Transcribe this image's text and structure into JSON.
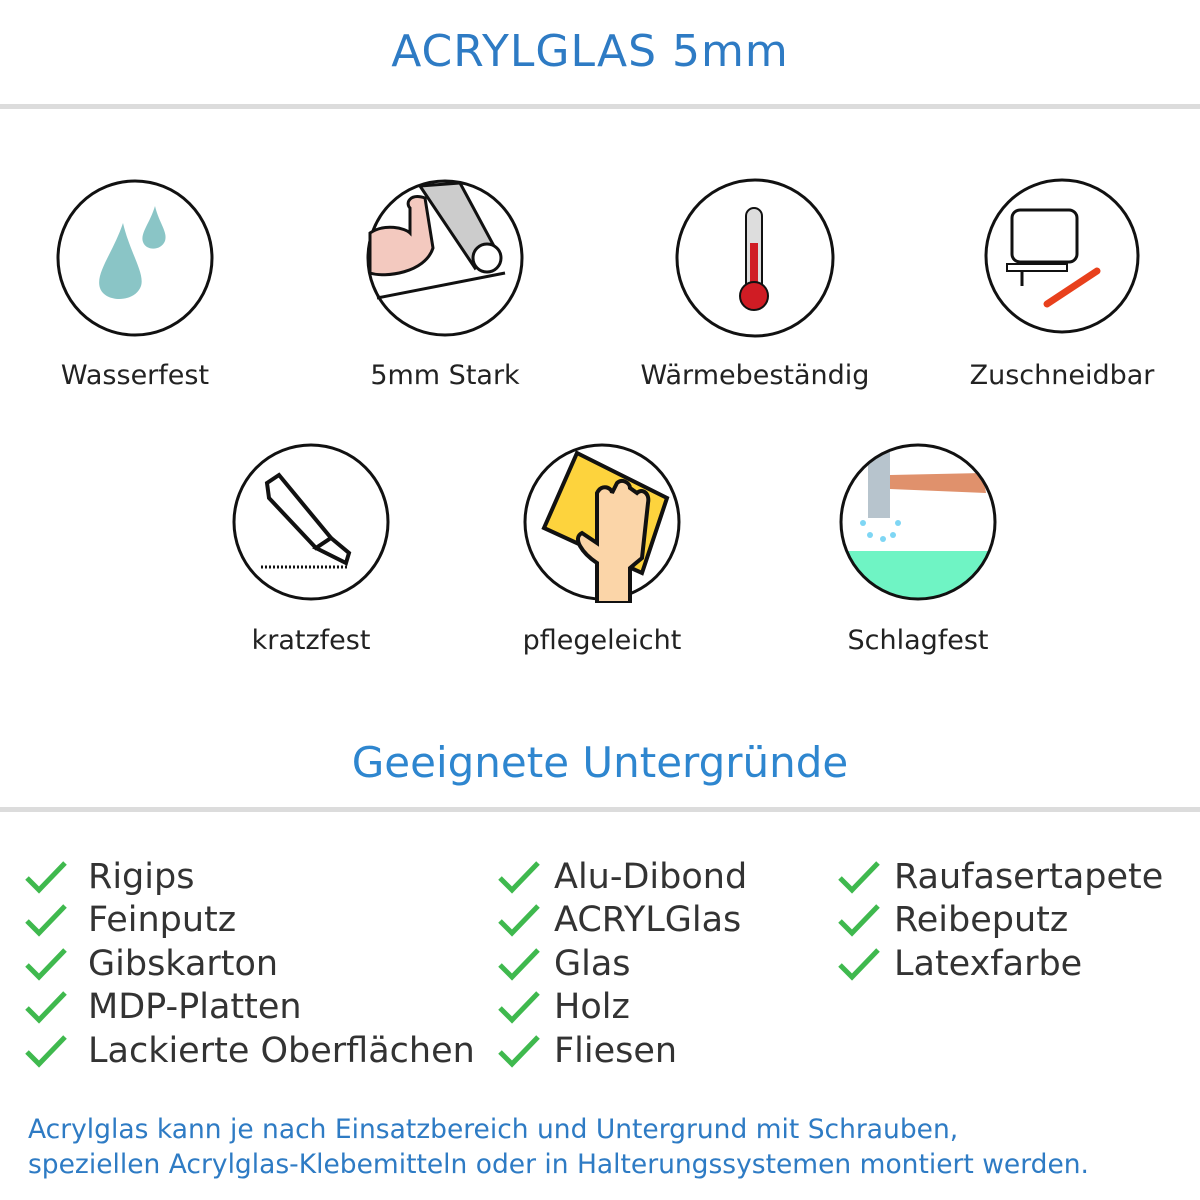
{
  "header": {
    "title": "ACRYLGLAS 5mm"
  },
  "features": [
    {
      "label": "Wasserfest",
      "icon": "water-drops-icon"
    },
    {
      "label": "5mm Stark",
      "icon": "strong-arm-icon"
    },
    {
      "label": "Wärmebeständig",
      "icon": "thermometer-icon"
    },
    {
      "label": "Zuschneidbar",
      "icon": "jigsaw-cutter-icon"
    },
    {
      "label": "kratzfest",
      "icon": "box-cutter-icon"
    },
    {
      "label": "pflegeleicht",
      "icon": "cleaning-hand-icon"
    },
    {
      "label": "Schlagfest",
      "icon": "hammer-impact-icon"
    }
  ],
  "surfaces": {
    "title": "Geeignete Untergründe",
    "columns": [
      [
        "Rigips",
        "Feinputz",
        "Gibskarton",
        "MDP-Platten",
        "Lackierte Oberflächen"
      ],
      [
        "Alu-Dibond",
        "ACRYLGlas",
        "Glas",
        "Holz",
        "Fliesen"
      ],
      [
        "Raufasertapete",
        "Reibeputz",
        "Latexfarbe"
      ]
    ]
  },
  "footer": {
    "lines": [
      "Acrylglas kann je nach Einsatzbereich und Untergrund mit Schrauben,",
      "speziellen Acrylglas-Klebemitteln oder in Halterungssystemen montiert werden."
    ]
  },
  "colors": {
    "title": "#2e7bc4",
    "check": "#3fb94e",
    "rule": "#dcdcdc"
  }
}
